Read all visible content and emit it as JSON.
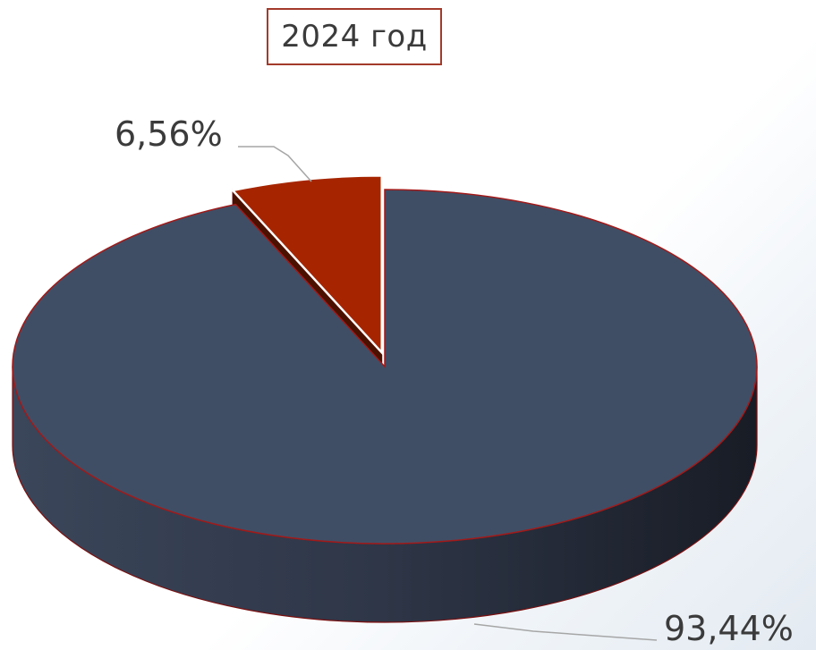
{
  "chart_data": {
    "type": "pie",
    "title": "2024 год",
    "categories": [
      "",
      ""
    ],
    "values": [
      93.44,
      6.56
    ],
    "labels": [
      "93,44%",
      "6,56%"
    ],
    "colors": [
      "#404e65",
      "#a62500"
    ],
    "exploded": [
      false,
      true
    ],
    "three_d": true,
    "legend": "none"
  }
}
